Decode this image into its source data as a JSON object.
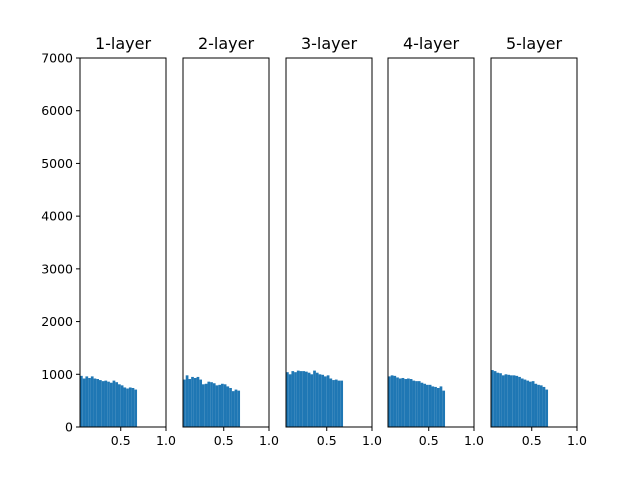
{
  "chart_data": {
    "type": "bar",
    "kind": "histogram-small-multiples",
    "bar_color": "#1f77b4",
    "shared_y": true,
    "ylim": [
      0,
      7000
    ],
    "yticks": [
      0,
      1000,
      2000,
      3000,
      4000,
      5000,
      6000,
      7000
    ],
    "xlim": [
      0.05,
      1.0
    ],
    "xticks": [
      0.5,
      1.0
    ],
    "xtick_labels": [
      "0.5",
      "1.0"
    ],
    "bin_edges_start": 0.05,
    "bin_width": 0.03,
    "grid": false,
    "panels": [
      {
        "title": "1-layer",
        "values": [
          970,
          920,
          960,
          930,
          960,
          920,
          910,
          890,
          870,
          880,
          860,
          840,
          880,
          850,
          810,
          790,
          750,
          730,
          750,
          740,
          710
        ]
      },
      {
        "title": "2-layer",
        "values": [
          900,
          980,
          910,
          950,
          930,
          950,
          900,
          810,
          820,
          860,
          850,
          830,
          790,
          800,
          820,
          810,
          770,
          740,
          680,
          710,
          690
        ]
      },
      {
        "title": "3-layer",
        "values": [
          1040,
          1000,
          1060,
          1040,
          1070,
          1060,
          1060,
          1050,
          1030,
          1000,
          1070,
          1030,
          1000,
          990,
          960,
          980,
          920,
          890,
          900,
          880,
          880
        ]
      },
      {
        "title": "4-layer",
        "values": [
          960,
          980,
          970,
          940,
          920,
          930,
          910,
          920,
          910,
          880,
          870,
          870,
          840,
          820,
          800,
          800,
          770,
          760,
          740,
          770,
          690
        ]
      },
      {
        "title": "5-layer",
        "values": [
          1080,
          1060,
          1030,
          1020,
          980,
          1000,
          990,
          980,
          980,
          970,
          950,
          920,
          900,
          880,
          860,
          870,
          820,
          800,
          790,
          760,
          710
        ]
      }
    ]
  }
}
